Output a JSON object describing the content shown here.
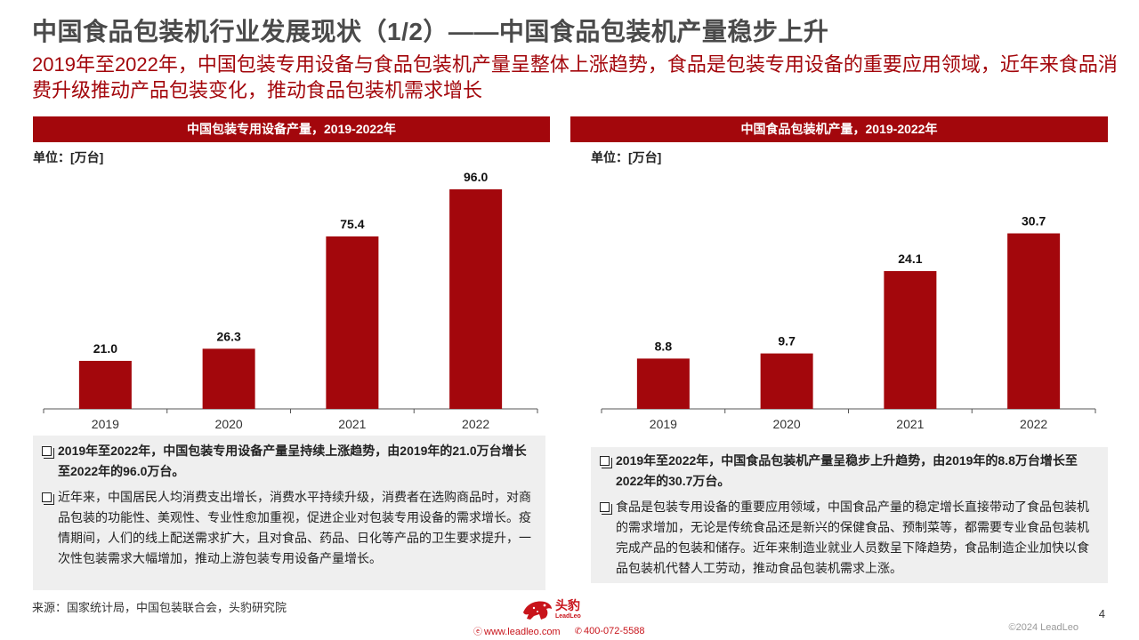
{
  "header": {
    "title": "中国食品包装机行业发展现状（1/2）——中国食品包装机产量稳步上升",
    "subtitle": "2019年至2022年，中国包装专用设备与食品包装机产量呈整体上涨趋势，食品是包装专用设备的重要应用领域，近年来食品消费升级推动产品包装变化，推动食品包装机需求增长"
  },
  "left_panel": {
    "heading": "中国包装专用设备产量，2019-2022年",
    "unit": "单位：[万台]",
    "notes": [
      "2019年至2022年，中国包装专用设备产量呈持续上涨趋势，由2019年的21.0万台增长至2022年的96.0万台。",
      "近年来，中国居民人均消费支出增长，消费水平持续升级，消费者在选购商品时，对商品包装的功能性、美观性、专业性愈加重视，促进企业对包装专用设备的需求增长。疫情期间，人们的线上配送需求扩大，且对食品、药品、日化等产品的卫生要求提升，一次性包装需求大幅增加，推动上游包装专用设备产量增长。"
    ]
  },
  "right_panel": {
    "heading": "中国食品包装机产量，2019-2022年",
    "unit": "单位：[万台]",
    "notes": [
      "2019年至2022年，中国食品包装机产量呈稳步上升趋势，由2019年的8.8万台增长至2022年的30.7万台。",
      "食品是包装专用设备的重要应用领域，中国食品产量的稳定增长直接带动了食品包装机的需求增加，无论是传统食品还是新兴的保健食品、预制菜等，都需要专业食品包装机完成产品的包装和储存。近年来制造业就业人员数呈下降趋势，食品制造企业加快以食品包装机代替人工劳动，推动食品包装机需求上涨。"
    ]
  },
  "chart_data": [
    {
      "type": "bar",
      "title": "中国包装专用设备产量，2019-2022年",
      "ylabel": "单位：[万台]",
      "categories": [
        "2019",
        "2020",
        "2021",
        "2022"
      ],
      "values": [
        21.0,
        26.3,
        75.4,
        96.0
      ],
      "labels": [
        "21.0",
        "26.3",
        "75.4",
        "96.0"
      ],
      "ylim": [
        0,
        96.0
      ],
      "bar_color": "#a3070c",
      "grid": false
    },
    {
      "type": "bar",
      "title": "中国食品包装机产量，2019-2022年",
      "ylabel": "单位：[万台]",
      "categories": [
        "2019",
        "2020",
        "2021",
        "2022"
      ],
      "values": [
        8.8,
        9.7,
        24.1,
        30.7
      ],
      "labels": [
        "8.8",
        "9.7",
        "24.1",
        "30.7"
      ],
      "ylim": [
        0,
        38.4
      ],
      "bar_color": "#a3070c",
      "grid": false
    }
  ],
  "footer": {
    "source": "来源：国家统计局，中国包装联合会，头豹研究院",
    "logo_cn": "头豹",
    "logo_en": "LeadLeo",
    "website": "www.leadleo.com",
    "phone": "400-072-5588",
    "copyright": "©2024 LeadLeo",
    "page": "4"
  },
  "colors": {
    "accent": "#a3070c",
    "title_gray": "#4a4a4a",
    "note_bg": "#efefef"
  }
}
